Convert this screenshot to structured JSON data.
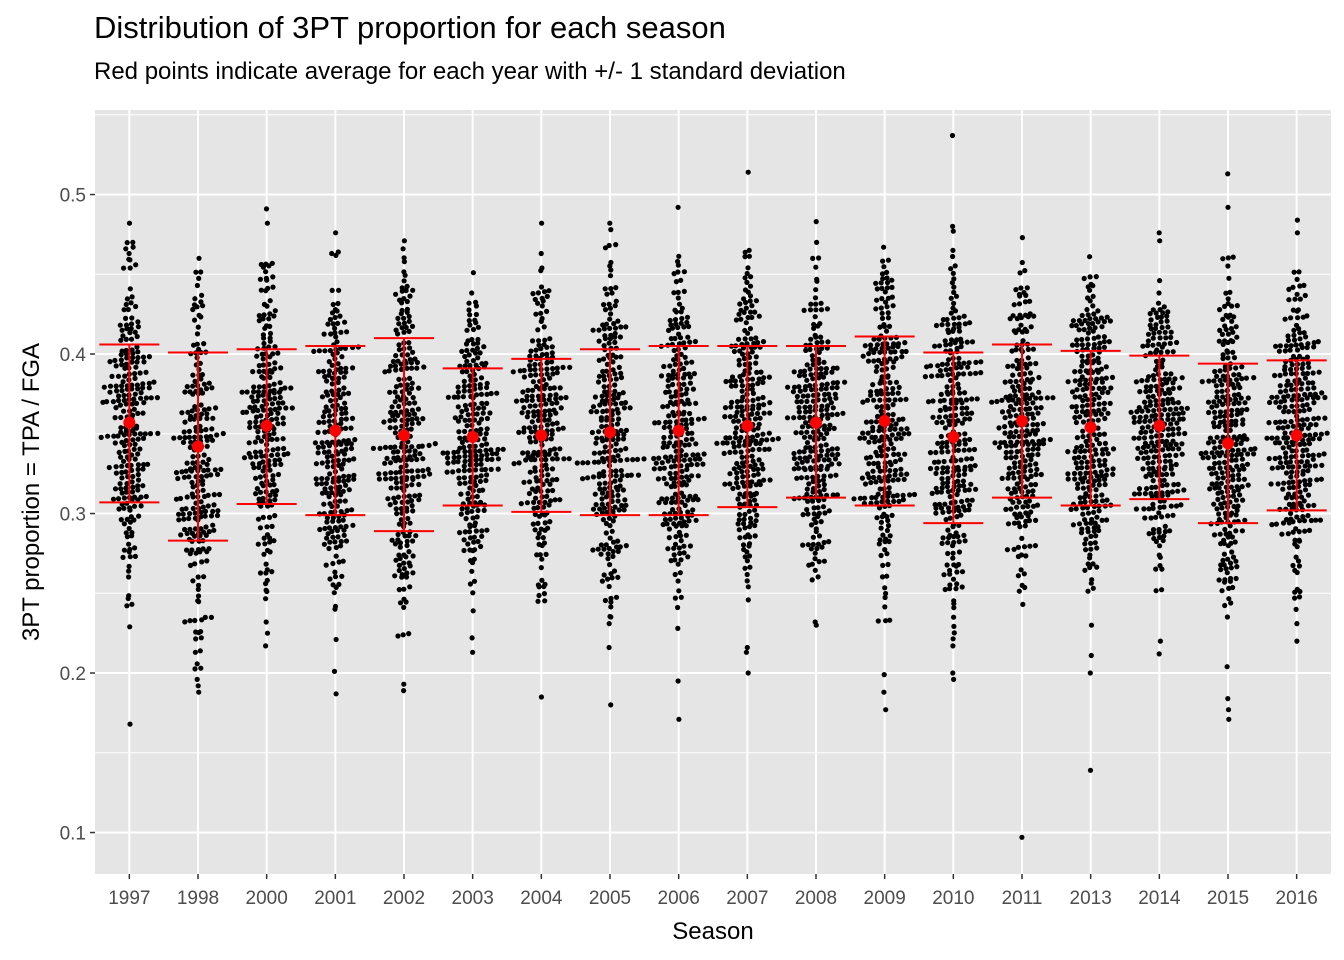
{
  "chart_data": {
    "type": "scatter",
    "subtype": "beeswarm with mean +/- 1 sd error bars",
    "title": "Distribution of 3PT proportion for each season",
    "subtitle": "Red points indicate average for each year with +/- 1 standard deviation",
    "xlabel": "Season",
    "ylabel": "3PT proportion = TPA / FGA",
    "y_ticks": [
      "0.1",
      "0.2",
      "0.3",
      "0.4",
      "0.5"
    ],
    "ylim": [
      0.074,
      0.553
    ],
    "grid": true,
    "legend": "none",
    "colors": {
      "points": "#000000",
      "summary": "#ff0000",
      "panel": "#e5e5e5",
      "grid": "#ffffff"
    },
    "seasons": [
      "1997",
      "1998",
      "2000",
      "2001",
      "2002",
      "2003",
      "2004",
      "2005",
      "2006",
      "2007",
      "2008",
      "2009",
      "2010",
      "2011",
      "2013",
      "2014",
      "2015",
      "2016"
    ],
    "series": [
      {
        "season": "1997",
        "mean": 0.357,
        "sd_low": 0.307,
        "sd_high": 0.406,
        "n": 240,
        "min": 0.168,
        "max": 0.482,
        "outliers": [
          0.168,
          0.229,
          0.482,
          0.47,
          0.466
        ]
      },
      {
        "season": "1998",
        "mean": 0.342,
        "sd_low": 0.283,
        "sd_high": 0.401,
        "n": 230,
        "min": 0.188,
        "max": 0.46,
        "outliers": [
          0.188,
          0.192,
          0.196,
          0.203,
          0.213,
          0.226,
          0.46
        ]
      },
      {
        "season": "2000",
        "mean": 0.355,
        "sd_low": 0.306,
        "sd_high": 0.403,
        "n": 230,
        "min": 0.217,
        "max": 0.491,
        "outliers": [
          0.217,
          0.225,
          0.232,
          0.491,
          0.482
        ]
      },
      {
        "season": "2001",
        "mean": 0.352,
        "sd_low": 0.299,
        "sd_high": 0.405,
        "n": 240,
        "min": 0.187,
        "max": 0.476,
        "outliers": [
          0.187,
          0.201,
          0.221,
          0.476,
          0.463
        ]
      },
      {
        "season": "2002",
        "mean": 0.349,
        "sd_low": 0.289,
        "sd_high": 0.41,
        "n": 260,
        "min": 0.189,
        "max": 0.471,
        "outliers": [
          0.189,
          0.193,
          0.224,
          0.471,
          0.466
        ]
      },
      {
        "season": "2003",
        "mean": 0.348,
        "sd_low": 0.305,
        "sd_high": 0.391,
        "n": 240,
        "min": 0.213,
        "max": 0.451,
        "outliers": [
          0.213,
          0.222,
          0.239,
          0.451
        ]
      },
      {
        "season": "2004",
        "mean": 0.349,
        "sd_low": 0.301,
        "sd_high": 0.397,
        "n": 250,
        "min": 0.185,
        "max": 0.482,
        "outliers": [
          0.185,
          0.245,
          0.482,
          0.463
        ]
      },
      {
        "season": "2005",
        "mean": 0.351,
        "sd_low": 0.299,
        "sd_high": 0.403,
        "n": 260,
        "min": 0.18,
        "max": 0.482,
        "outliers": [
          0.18,
          0.216,
          0.482,
          0.478
        ]
      },
      {
        "season": "2006",
        "mean": 0.352,
        "sd_low": 0.299,
        "sd_high": 0.405,
        "n": 270,
        "min": 0.171,
        "max": 0.492,
        "outliers": [
          0.171,
          0.195,
          0.228,
          0.492
        ]
      },
      {
        "season": "2007",
        "mean": 0.355,
        "sd_low": 0.304,
        "sd_high": 0.405,
        "n": 270,
        "min": 0.2,
        "max": 0.514,
        "outliers": [
          0.2,
          0.213,
          0.216,
          0.514,
          0.461
        ]
      },
      {
        "season": "2008",
        "mean": 0.357,
        "sd_low": 0.31,
        "sd_high": 0.405,
        "n": 270,
        "min": 0.23,
        "max": 0.483,
        "outliers": [
          0.23,
          0.232,
          0.483,
          0.47
        ]
      },
      {
        "season": "2009",
        "mean": 0.358,
        "sd_low": 0.305,
        "sd_high": 0.411,
        "n": 270,
        "min": 0.177,
        "max": 0.467,
        "outliers": [
          0.177,
          0.188,
          0.199,
          0.467
        ]
      },
      {
        "season": "2010",
        "mean": 0.348,
        "sd_low": 0.294,
        "sd_high": 0.401,
        "n": 290,
        "min": 0.196,
        "max": 0.537,
        "outliers": [
          0.196,
          0.2,
          0.217,
          0.537,
          0.48,
          0.477,
          0.465
        ]
      },
      {
        "season": "2011",
        "mean": 0.358,
        "sd_low": 0.31,
        "sd_high": 0.406,
        "n": 260,
        "min": 0.097,
        "max": 0.473,
        "outliers": [
          0.097,
          0.243,
          0.473
        ]
      },
      {
        "season": "2013",
        "mean": 0.354,
        "sd_low": 0.305,
        "sd_high": 0.402,
        "n": 290,
        "min": 0.139,
        "max": 0.461,
        "outliers": [
          0.139,
          0.2,
          0.211,
          0.23,
          0.461
        ]
      },
      {
        "season": "2014",
        "mean": 0.355,
        "sd_low": 0.309,
        "sd_high": 0.399,
        "n": 280,
        "min": 0.212,
        "max": 0.476,
        "outliers": [
          0.212,
          0.22,
          0.476,
          0.471
        ]
      },
      {
        "season": "2015",
        "mean": 0.344,
        "sd_low": 0.294,
        "sd_high": 0.394,
        "n": 290,
        "min": 0.171,
        "max": 0.513,
        "outliers": [
          0.171,
          0.177,
          0.184,
          0.204,
          0.513,
          0.492
        ]
      },
      {
        "season": "2016",
        "mean": 0.349,
        "sd_low": 0.302,
        "sd_high": 0.396,
        "n": 300,
        "min": 0.22,
        "max": 0.484,
        "outliers": [
          0.22,
          0.231,
          0.484,
          0.476
        ]
      }
    ]
  }
}
